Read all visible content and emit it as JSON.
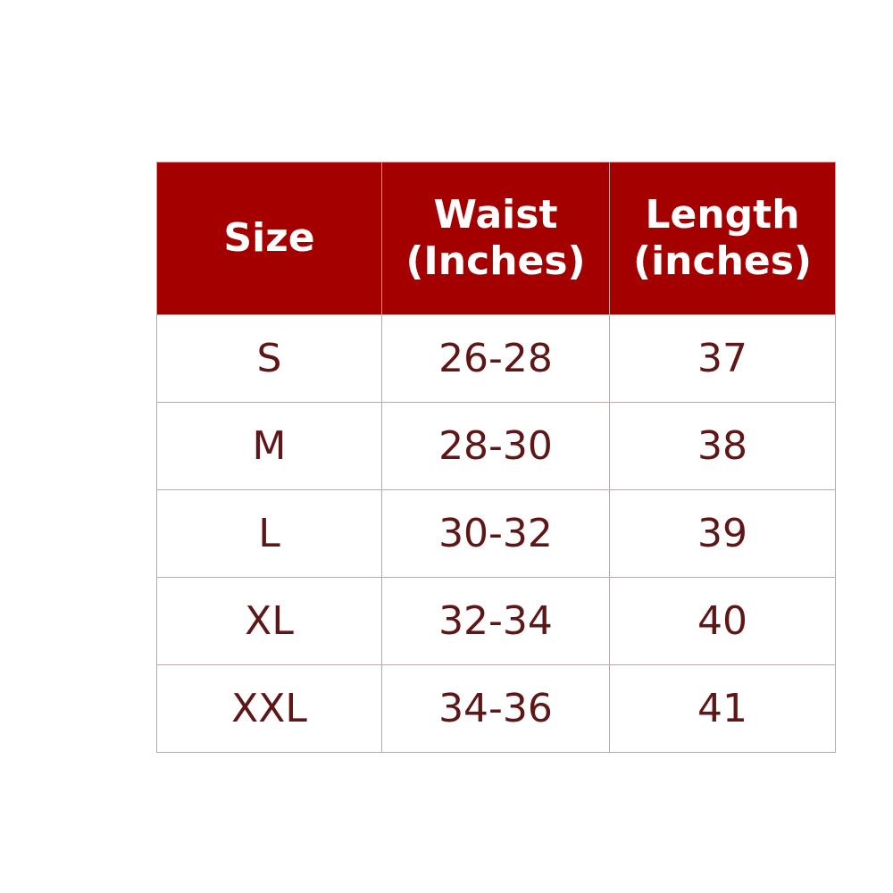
{
  "table": {
    "header_color": "#a40000",
    "headers": [
      {
        "line1": "Size",
        "line2": ""
      },
      {
        "line1": "Waist",
        "line2": "(Inches)"
      },
      {
        "line1": "Length",
        "line2": "(inches)"
      }
    ],
    "rows": [
      [
        "S",
        "26-28",
        "37"
      ],
      [
        "M",
        "28-30",
        "38"
      ],
      [
        "L",
        "30-32",
        "39"
      ],
      [
        "XL",
        "32-34",
        "40"
      ],
      [
        "XXL",
        "34-36",
        "41"
      ]
    ]
  }
}
